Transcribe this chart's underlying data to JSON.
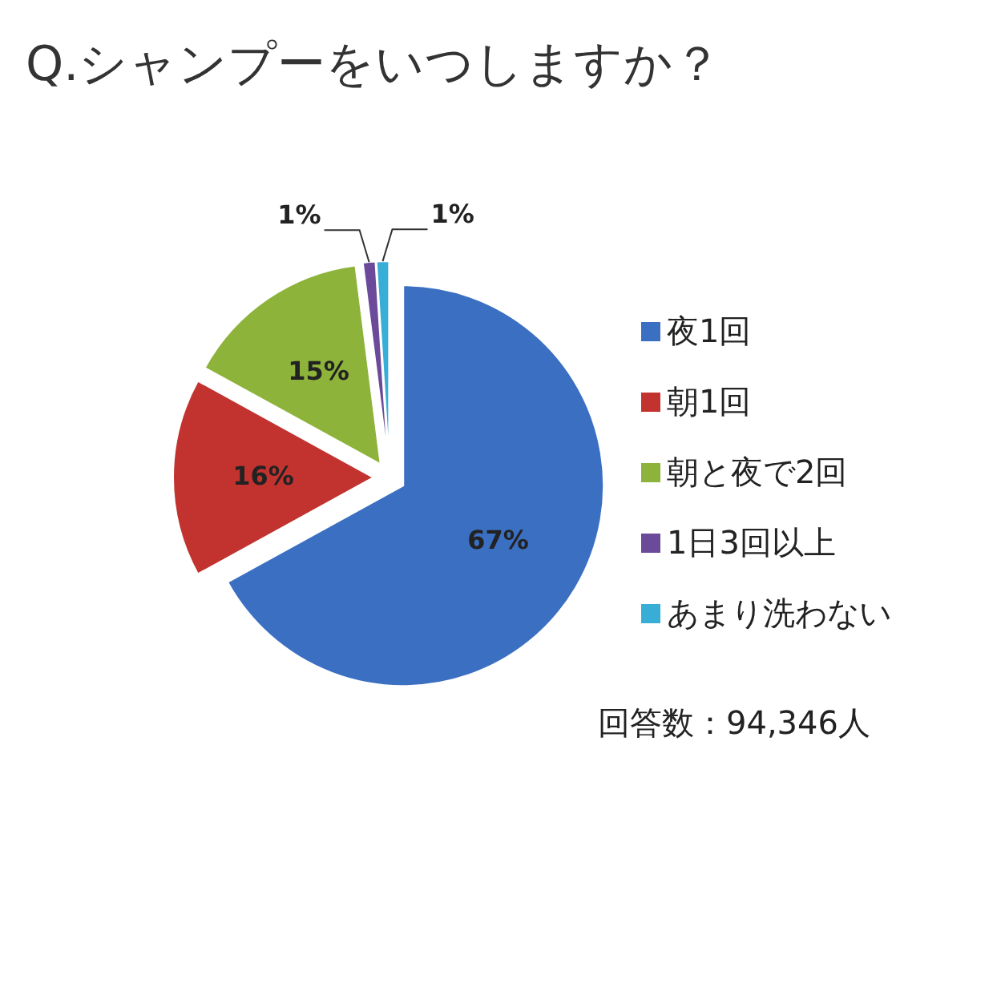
{
  "chart_data": {
    "type": "pie",
    "title": "Q.シャンプーをいつしますか？",
    "categories": [
      "夜1回",
      "朝1回",
      "朝と夜で2回",
      "1日3回以上",
      "あまり洗わない"
    ],
    "values": [
      67,
      16,
      15,
      1,
      1
    ],
    "colors": [
      "#3b6fc2",
      "#c2332f",
      "#8db33a",
      "#6b4a9a",
      "#38aed6"
    ],
    "value_labels": [
      "67%",
      "16%",
      "15%",
      "1%",
      "1%"
    ],
    "legend": "right",
    "annotations": [
      "回答数：94,346人"
    ]
  }
}
